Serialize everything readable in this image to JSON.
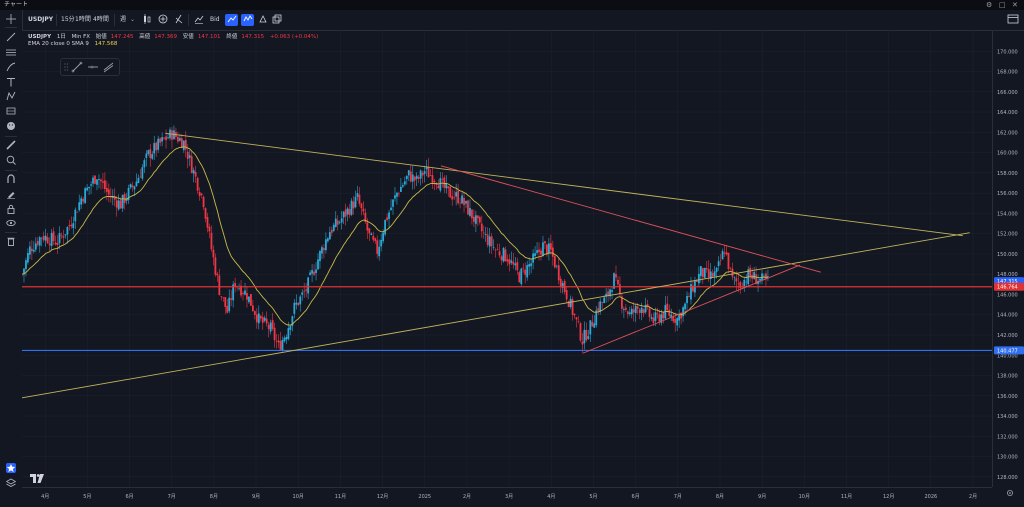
{
  "window": {
    "title": "チャート",
    "controls": [
      "⚙",
      "□",
      "✕"
    ]
  },
  "toolbar": {
    "symbol": "USDJPY",
    "intervals": [
      "15分",
      "1時間",
      "4時間",
      "週"
    ],
    "bid_label": "Bid",
    "icons": [
      "candles-icon",
      "add-indicator-icon",
      "function-icon",
      "compare-icon",
      "line-chart-icon",
      "area-icon",
      "alert-icon",
      "layout-icon"
    ]
  },
  "legend": {
    "symbol": "USDJPY",
    "interval": "1日",
    "source": "Min FX",
    "open_label": "始値",
    "open": "147.245",
    "high_label": "高値",
    "high": "147.369",
    "low_label": "安値",
    "low": "147.101",
    "close_label": "終値",
    "close": "147.315",
    "change": "+0.063 (+0.04%)",
    "indicator": "EMA 20 close 0 SMA 9",
    "indicator_value": "147.568"
  },
  "colors": {
    "background": "#131722",
    "grid": "#1f2330",
    "up": "#2aa8d6",
    "down": "#f23645",
    "ema": "#c9b94a",
    "trend_yellow": "#c2b45c",
    "trend_red": "#e0525a",
    "support_red": "#e03232",
    "support_blue": "#2f6ff0"
  },
  "chart_data": {
    "type": "candlestick",
    "symbol": "USDJPY",
    "ylim": [
      127,
      172
    ],
    "yticks": [
      128,
      130,
      132,
      134,
      136,
      138,
      140,
      142,
      144,
      146,
      148,
      150,
      152,
      154,
      156,
      158,
      160,
      162,
      164,
      166,
      168,
      170
    ],
    "ytick_labels": [
      "128.000",
      "130.000",
      "132.000",
      "134.000",
      "136.000",
      "138.000",
      "140.000",
      "142.000",
      "144.000",
      "146.000",
      "148.000",
      "150.000",
      "152.000",
      "154.000",
      "156.000",
      "158.000",
      "160.000",
      "162.000",
      "164.000",
      "166.000",
      "168.000",
      "170.000"
    ],
    "xtick_labels": [
      "4月",
      "5月",
      "6月",
      "7月",
      "8月",
      "9月",
      "10月",
      "11月",
      "12月",
      "2025",
      "2月",
      "3月",
      "4月",
      "5月",
      "6月",
      "7月",
      "8月",
      "9月",
      "10月",
      "11月",
      "12月",
      "2026",
      "2月"
    ],
    "price_labels": [
      {
        "value": 147.315,
        "text": "147.315",
        "color": "#2962ff"
      },
      {
        "value": 146.764,
        "text": "146.764",
        "color": "#e03232"
      },
      {
        "value": 140.477,
        "text": "140.477",
        "color": "#2f6ff0"
      }
    ],
    "horizontal_lines": [
      {
        "name": "resistance-support",
        "value": 146.764,
        "color": "#e03232"
      },
      {
        "name": "support",
        "value": 140.477,
        "color": "#2f6ff0"
      }
    ],
    "trend_lines": [
      {
        "name": "upper-yellow",
        "from": [
          "2024-06-26",
          161.9
        ],
        "to": [
          "2026-01-20",
          151.8
        ],
        "color": "#c2b45c"
      },
      {
        "name": "lower-yellow",
        "from": [
          "2024-03-15",
          135.8
        ],
        "to": [
          "2026-01-25",
          152.1
        ],
        "color": "#c2b45c"
      },
      {
        "name": "upper-red",
        "from": [
          "2025-01-10",
          158.7
        ],
        "to": [
          "2025-10-10",
          148.2
        ],
        "color": "#e0525a"
      },
      {
        "name": "lower-red",
        "from": [
          "2025-04-22",
          140.2
        ],
        "to": [
          "2025-09-25",
          148.9
        ],
        "color": "#e0525a"
      }
    ],
    "price_path": [
      [
        0,
        148.0
      ],
      [
        4,
        150.5
      ],
      [
        10,
        151.8
      ],
      [
        18,
        151.2
      ],
      [
        24,
        152.8
      ],
      [
        30,
        155.5
      ],
      [
        38,
        157.8
      ],
      [
        44,
        155.8
      ],
      [
        50,
        154.9
      ],
      [
        58,
        157.2
      ],
      [
        64,
        159.8
      ],
      [
        70,
        160.9
      ],
      [
        76,
        161.9
      ],
      [
        82,
        161.0
      ],
      [
        88,
        157.5
      ],
      [
        92,
        155.2
      ],
      [
        96,
        150.5
      ],
      [
        100,
        146.5
      ],
      [
        104,
        144.3
      ],
      [
        108,
        147.2
      ],
      [
        114,
        146.0
      ],
      [
        120,
        143.5
      ],
      [
        126,
        142.6
      ],
      [
        130,
        140.8
      ],
      [
        134,
        142.3
      ],
      [
        138,
        144.7
      ],
      [
        144,
        146.5
      ],
      [
        150,
        149.5
      ],
      [
        156,
        152.3
      ],
      [
        160,
        153.0
      ],
      [
        164,
        154.0
      ],
      [
        170,
        155.5
      ],
      [
        176,
        151.7
      ],
      [
        180,
        150.3
      ],
      [
        184,
        153.2
      ],
      [
        190,
        156.0
      ],
      [
        196,
        157.8
      ],
      [
        200,
        157.2
      ],
      [
        204,
        158.2
      ],
      [
        210,
        157.4
      ],
      [
        216,
        156.0
      ],
      [
        222,
        155.5
      ],
      [
        228,
        153.8
      ],
      [
        234,
        151.9
      ],
      [
        240,
        150.4
      ],
      [
        246,
        149.7
      ],
      [
        252,
        147.8
      ],
      [
        258,
        149.1
      ],
      [
        264,
        150.8
      ],
      [
        268,
        150.2
      ],
      [
        272,
        148.0
      ],
      [
        276,
        146.0
      ],
      [
        280,
        143.8
      ],
      [
        284,
        141.5
      ],
      [
        288,
        142.8
      ],
      [
        292,
        144.8
      ],
      [
        296,
        145.6
      ],
      [
        300,
        147.6
      ],
      [
        304,
        145.2
      ],
      [
        308,
        144.0
      ],
      [
        314,
        144.9
      ],
      [
        320,
        143.4
      ],
      [
        326,
        144.3
      ],
      [
        332,
        143.6
      ],
      [
        336,
        144.9
      ],
      [
        340,
        146.8
      ],
      [
        344,
        148.2
      ],
      [
        348,
        147.7
      ],
      [
        352,
        148.1
      ],
      [
        356,
        150.5
      ],
      [
        360,
        147.4
      ],
      [
        364,
        147.0
      ],
      [
        368,
        147.9
      ],
      [
        372,
        147.6
      ],
      [
        376,
        147.3
      ],
      [
        378,
        147.3
      ]
    ],
    "time_span": [
      "2024-03-15",
      "2026-02-10"
    ]
  }
}
